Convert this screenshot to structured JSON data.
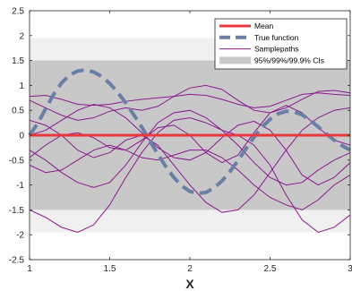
{
  "chart_data": {
    "type": "line",
    "xlabel": "X",
    "ylabel": "",
    "xlim": [
      1,
      3
    ],
    "ylim": [
      -2.5,
      2.5
    ],
    "xticks": [
      "1",
      "1.5",
      "2",
      "2.5",
      "3"
    ],
    "xtick_values": [
      1,
      1.5,
      2,
      2.5,
      3
    ],
    "yticks": [
      "2.5",
      "2",
      "1.5",
      "1",
      "0.5",
      "0",
      "-0.5",
      "-1",
      "-1.5",
      "-2",
      "-2.5"
    ],
    "ytick_values": [
      2.5,
      2,
      1.5,
      1,
      0.5,
      0,
      -0.5,
      -1,
      -1.5,
      -2,
      -2.5
    ],
    "legend_position": "top-right",
    "bands": [
      {
        "lower": -1.95,
        "upper": 1.95,
        "color": "#f0f0f0"
      },
      {
        "lower": -1.5,
        "upper": 1.5,
        "color": "#c8c8c8"
      }
    ],
    "series": [
      {
        "name": "Mean",
        "kind": "mean",
        "color": "#e8383d",
        "x": [
          1,
          3
        ],
        "y": [
          0,
          0
        ]
      },
      {
        "name": "True function",
        "kind": "true",
        "color": "#6a7fa6",
        "x": [
          1.0,
          1.05,
          1.1,
          1.15,
          1.2,
          1.25,
          1.3,
          1.35,
          1.4,
          1.45,
          1.5,
          1.55,
          1.6,
          1.65,
          1.7,
          1.75,
          1.8,
          1.85,
          1.9,
          1.95,
          2.0,
          2.05,
          2.1,
          2.15,
          2.2,
          2.25,
          2.3,
          2.35,
          2.4,
          2.45,
          2.5,
          2.55,
          2.6,
          2.65,
          2.7,
          2.75,
          2.8,
          2.85,
          2.9,
          2.95,
          3.0
        ],
        "y": [
          0.0,
          0.23,
          0.53,
          0.82,
          1.05,
          1.21,
          1.29,
          1.31,
          1.27,
          1.18,
          1.04,
          0.86,
          0.65,
          0.41,
          0.16,
          -0.11,
          -0.38,
          -0.63,
          -0.85,
          -1.02,
          -1.13,
          -1.17,
          -1.15,
          -1.06,
          -0.92,
          -0.73,
          -0.51,
          -0.27,
          -0.04,
          0.16,
          0.32,
          0.43,
          0.48,
          0.47,
          0.41,
          0.3,
          0.17,
          0.03,
          -0.1,
          -0.21,
          -0.3
        ]
      },
      {
        "name": "Samplepaths",
        "kind": "sample",
        "color": "#8b1a8f",
        "x": [
          1.0,
          1.1,
          1.2,
          1.3,
          1.4,
          1.5,
          1.6,
          1.7,
          1.8,
          1.9,
          2.0,
          2.1,
          2.2,
          2.3,
          2.4,
          2.5,
          2.6,
          2.7,
          2.8,
          2.9,
          3.0
        ],
        "y": [
          0.78,
          0.8,
          0.72,
          0.62,
          0.6,
          0.62,
          0.68,
          0.72,
          0.75,
          0.78,
          0.82,
          0.8,
          0.72,
          0.62,
          0.55,
          0.58,
          0.7,
          0.82,
          0.85,
          0.82,
          0.8
        ]
      },
      {
        "name": "",
        "kind": "sample",
        "color": "#8b1a8f",
        "x": [
          1.0,
          1.1,
          1.2,
          1.3,
          1.4,
          1.5,
          1.6,
          1.7,
          1.8,
          1.9,
          2.0,
          2.1,
          2.2,
          2.3,
          2.4,
          2.5,
          2.6,
          2.7,
          2.8,
          2.9,
          3.0
        ],
        "y": [
          0.7,
          0.55,
          0.4,
          0.3,
          0.35,
          0.48,
          0.55,
          0.5,
          0.58,
          0.78,
          0.95,
          1.0,
          0.92,
          0.7,
          0.5,
          0.45,
          0.55,
          0.72,
          0.88,
          0.9,
          0.85
        ]
      },
      {
        "name": "",
        "kind": "sample",
        "color": "#8b1a8f",
        "x": [
          1.0,
          1.1,
          1.2,
          1.3,
          1.4,
          1.5,
          1.6,
          1.7,
          1.8,
          1.9,
          2.0,
          2.1,
          2.2,
          2.3,
          2.4,
          2.5,
          2.6,
          2.7,
          2.8,
          2.9,
          3.0
        ],
        "y": [
          0.0,
          0.1,
          0.3,
          0.5,
          0.62,
          0.55,
          0.35,
          0.05,
          -0.25,
          -0.45,
          -0.5,
          -0.35,
          -0.05,
          0.2,
          0.28,
          0.1,
          -0.3,
          -0.8,
          -1.0,
          -0.85,
          -0.55
        ]
      },
      {
        "name": "",
        "kind": "sample",
        "color": "#8b1a8f",
        "x": [
          1.0,
          1.1,
          1.2,
          1.3,
          1.4,
          1.5,
          1.6,
          1.7,
          1.8,
          1.9,
          2.0,
          2.1,
          2.2,
          2.3,
          2.4,
          2.5,
          2.6,
          2.7,
          2.8,
          2.9,
          3.0
        ],
        "y": [
          -0.3,
          -0.5,
          -0.75,
          -0.95,
          -1.05,
          -0.95,
          -0.6,
          -0.15,
          0.25,
          0.45,
          0.5,
          0.35,
          0.1,
          -0.2,
          -0.55,
          -0.85,
          -1.0,
          -0.95,
          -0.7,
          -0.5,
          -0.35
        ]
      },
      {
        "name": "",
        "kind": "sample",
        "color": "#8b1a8f",
        "x": [
          1.0,
          1.1,
          1.2,
          1.3,
          1.4,
          1.5,
          1.6,
          1.7,
          1.8,
          1.9,
          2.0,
          2.1,
          2.2,
          2.3,
          2.4,
          2.5,
          2.6,
          2.7,
          2.8,
          2.9,
          3.0
        ],
        "y": [
          -0.45,
          -0.2,
          0.0,
          0.05,
          -0.05,
          -0.25,
          -0.3,
          -0.1,
          0.15,
          0.2,
          0.0,
          -0.35,
          -0.55,
          -0.4,
          0.05,
          0.45,
          0.6,
          0.45,
          0.15,
          -0.1,
          -0.2
        ]
      },
      {
        "name": "",
        "kind": "sample",
        "color": "#8b1a8f",
        "x": [
          1.0,
          1.1,
          1.2,
          1.3,
          1.4,
          1.5,
          1.6,
          1.7,
          1.8,
          1.9,
          2.0,
          2.1,
          2.2,
          2.3,
          2.4,
          2.5,
          2.6,
          2.7,
          2.8,
          2.9,
          3.0
        ],
        "y": [
          -0.6,
          -0.75,
          -0.7,
          -0.5,
          -0.3,
          -0.2,
          -0.3,
          -0.45,
          -0.5,
          -0.4,
          -0.3,
          -0.3,
          -0.45,
          -0.7,
          -1.0,
          -1.25,
          -1.4,
          -1.5,
          -1.3,
          -1.0,
          -0.8
        ]
      },
      {
        "name": "",
        "kind": "sample",
        "color": "#8b1a8f",
        "x": [
          1.0,
          1.1,
          1.2,
          1.3,
          1.4,
          1.5,
          1.6,
          1.7,
          1.8,
          1.9,
          2.0,
          2.1,
          2.2,
          2.3,
          2.4,
          2.5,
          2.6,
          2.7,
          2.8,
          2.9,
          3.0
        ],
        "y": [
          -1.5,
          -1.65,
          -1.85,
          -1.95,
          -1.8,
          -1.4,
          -0.85,
          -0.35,
          0.05,
          0.3,
          0.35,
          0.25,
          0.1,
          0.0,
          -0.2,
          -0.6,
          -1.2,
          -1.7,
          -1.95,
          -1.85,
          -1.6
        ]
      },
      {
        "name": "",
        "kind": "sample",
        "color": "#8b1a8f",
        "x": [
          1.0,
          1.1,
          1.2,
          1.3,
          1.4,
          1.5,
          1.6,
          1.7,
          1.8,
          1.9,
          2.0,
          2.1,
          2.2,
          2.3,
          2.4,
          2.5,
          2.6,
          2.7,
          2.8,
          2.9,
          3.0
        ],
        "y": [
          0.3,
          0.2,
          0.0,
          -0.3,
          -0.45,
          -0.35,
          -0.1,
          0.0,
          -0.2,
          -0.6,
          -1.0,
          -1.35,
          -1.55,
          -1.5,
          -1.2,
          -0.75,
          -0.3,
          0.1,
          0.35,
          0.5,
          0.55
        ]
      }
    ],
    "legend": [
      {
        "label": "Mean",
        "style": "mean"
      },
      {
        "label": "True function",
        "style": "true"
      },
      {
        "label": "Samplepaths",
        "style": "sample"
      },
      {
        "label": "95%/99%/99.9% CIs",
        "style": "band"
      }
    ],
    "colors": {
      "mean": "#e8383d",
      "true": "#6a7fa6",
      "sample": "#8b1a8f",
      "band_outer": "#f0f0f0",
      "band_inner": "#c8c8c8",
      "axis": "#262626"
    }
  }
}
